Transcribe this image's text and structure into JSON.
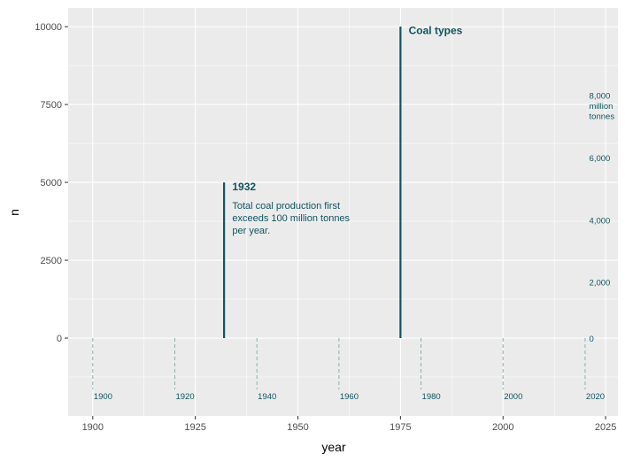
{
  "chart_data": {
    "type": "line",
    "title": "",
    "xlabel": "year",
    "ylabel": "n",
    "xlim": [
      1894,
      2028
    ],
    "ylim": [
      -2500,
      10600
    ],
    "grid": true,
    "x_ticks": [
      1900,
      1925,
      1950,
      1975,
      2000,
      2025
    ],
    "y_ticks": [
      0,
      2500,
      5000,
      7500,
      10000
    ],
    "x_tick_labels": [
      "1900",
      "1925",
      "1950",
      "1975",
      "2000",
      "2025"
    ],
    "y_tick_labels": [
      "0",
      "2500",
      "5000",
      "7500",
      "10000"
    ],
    "colors": {
      "accent": "#0f5460",
      "dashed": "#8ab0ad",
      "panel": "#ebebeb",
      "grid": "#ffffff"
    },
    "annotation_lines": [
      {
        "x": 1932,
        "y_from": 0,
        "y_to": 5000
      },
      {
        "x": 1975,
        "y_from": 0,
        "y_to": 10000
      }
    ],
    "annotations": [
      {
        "x": 1934,
        "y": 4750,
        "title": "1932",
        "lines": [
          "Total coal production first",
          "exceeds 100 million tonnes",
          "per year."
        ]
      },
      {
        "x": 1977,
        "y": 9760,
        "title": "Coal types",
        "lines": []
      }
    ],
    "decade_markers": [
      {
        "x": 1900,
        "label": "1900"
      },
      {
        "x": 1920,
        "label": "1920"
      },
      {
        "x": 1940,
        "label": "1940"
      },
      {
        "x": 1960,
        "label": "1960"
      },
      {
        "x": 1980,
        "label": "1980"
      },
      {
        "x": 2000,
        "label": "2000"
      },
      {
        "x": 2020,
        "label": "2020"
      }
    ],
    "marker_y_top": 0,
    "marker_y_bottom": -1650,
    "secondary_scale": {
      "x": 2021,
      "labels": [
        {
          "y": 0,
          "lines": [
            "0"
          ]
        },
        {
          "y": 1800,
          "lines": [
            "2,000"
          ]
        },
        {
          "y": 3800,
          "lines": [
            "4,000"
          ]
        },
        {
          "y": 5800,
          "lines": [
            "6,000"
          ]
        },
        {
          "y": 7800,
          "lines": [
            "8,000",
            "million",
            "tonnes"
          ]
        }
      ]
    }
  }
}
